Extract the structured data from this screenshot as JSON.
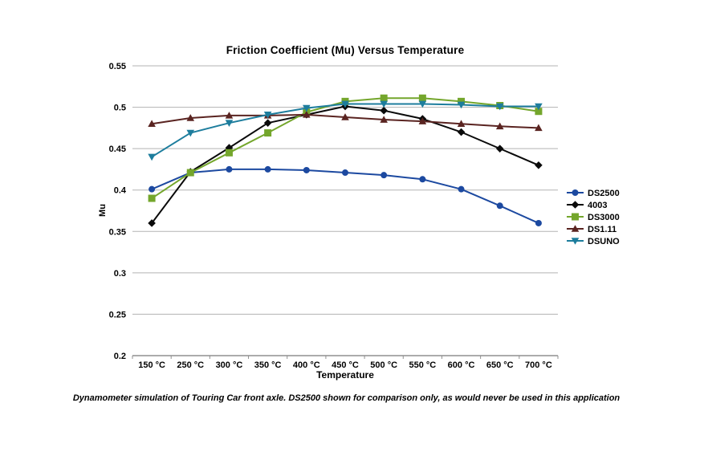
{
  "title": "Friction Coefficient (Mu) Versus Temperature",
  "caption": "Dynamometer simulation of Touring Car front axle. DS2500 shown for comparison only, as would never be used in this application",
  "chart_data": {
    "type": "line",
    "title": "Friction Coefficient (Mu) Versus Temperature",
    "xlabel": "Temperature",
    "ylabel": "Mu",
    "ylim": [
      0.2,
      0.55
    ],
    "grid": true,
    "legend_position": "right",
    "y_ticks": [
      "0.55",
      "0.5",
      "0.45",
      "0.4",
      "0.35",
      "0.3",
      "0.25",
      "0.2"
    ],
    "categories": [
      "150 °C",
      "250 °C",
      "300 °C",
      "350 °C",
      "400 °C",
      "450 °C",
      "500 °C",
      "550 °C",
      "600 °C",
      "650 °C",
      "700 °C"
    ],
    "series": [
      {
        "name": "DS2500",
        "color": "#1c49a0",
        "marker": "circle",
        "values": [
          0.401,
          0.421,
          0.425,
          0.425,
          0.424,
          0.421,
          0.418,
          0.413,
          0.401,
          0.381,
          0.36
        ]
      },
      {
        "name": "4003",
        "color": "#0a0a0a",
        "marker": "diamond",
        "values": [
          0.36,
          0.422,
          0.451,
          0.481,
          0.491,
          0.501,
          0.496,
          0.486,
          0.47,
          0.45,
          0.43
        ]
      },
      {
        "name": "DS3000",
        "color": "#74a62c",
        "marker": "square",
        "values": [
          0.39,
          0.421,
          0.445,
          0.469,
          0.494,
          0.507,
          0.511,
          0.511,
          0.507,
          0.502,
          0.495
        ]
      },
      {
        "name": "DS1.11",
        "color": "#5a2421",
        "marker": "triangle-up",
        "values": [
          0.48,
          0.487,
          0.49,
          0.49,
          0.491,
          0.488,
          0.485,
          0.483,
          0.48,
          0.477,
          0.475
        ]
      },
      {
        "name": "DSUNO",
        "color": "#1d7d9d",
        "marker": "triangle-down",
        "values": [
          0.44,
          0.469,
          0.481,
          0.491,
          0.499,
          0.504,
          0.504,
          0.504,
          0.503,
          0.501,
          0.501
        ]
      }
    ],
    "colors": {
      "gridline": "#b3b3b3",
      "axis": "#8f8f8f",
      "text": "#000000"
    }
  }
}
